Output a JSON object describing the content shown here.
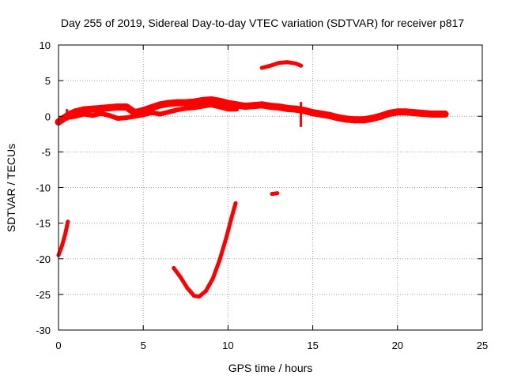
{
  "chart_data": {
    "type": "scatter",
    "title": "Day 255 of 2019, Sidereal Day-to-day VTEC variation (SDTVAR) for receiver p817",
    "xlabel": "GPS time / hours",
    "ylabel": "SDTVAR / TECUs",
    "xlim": [
      0,
      25
    ],
    "ylim": [
      -30,
      10
    ],
    "grid": true,
    "x_ticks": [
      "0",
      "5",
      "10",
      "15",
      "20",
      "25"
    ],
    "y_ticks": [
      "10",
      "5",
      "0",
      "-5",
      "-10",
      "-15",
      "-20",
      "-25",
      "-30"
    ],
    "series": [
      {
        "name": "main-band",
        "color": "#ff0000",
        "width": 9,
        "points": [
          [
            0,
            -0.8
          ],
          [
            0.3,
            -0.3
          ],
          [
            0.6,
            0.2
          ],
          [
            1,
            0.6
          ],
          [
            1.5,
            0.9
          ],
          [
            2,
            1.0
          ],
          [
            2.5,
            1.1
          ],
          [
            3,
            1.2
          ],
          [
            3.5,
            1.3
          ],
          [
            4,
            1.3
          ],
          [
            4.5,
            0.5
          ],
          [
            5,
            0.8
          ],
          [
            5.5,
            1.2
          ],
          [
            6,
            1.6
          ],
          [
            6.5,
            1.8
          ],
          [
            7,
            1.9
          ],
          [
            7.5,
            1.9
          ],
          [
            8,
            2.0
          ],
          [
            8.5,
            2.2
          ],
          [
            9,
            2.3
          ],
          [
            9.5,
            2.1
          ],
          [
            10,
            1.8
          ],
          [
            10.5,
            1.6
          ],
          [
            11,
            1.4
          ],
          [
            11.5,
            1.5
          ],
          [
            12,
            1.6
          ],
          [
            12.5,
            1.4
          ],
          [
            13,
            1.3
          ],
          [
            13.5,
            1.1
          ],
          [
            14,
            1.0
          ],
          [
            14.5,
            0.8
          ],
          [
            15,
            0.5
          ],
          [
            15.5,
            0.3
          ],
          [
            16,
            0.1
          ],
          [
            16.5,
            -0.2
          ],
          [
            17,
            -0.4
          ],
          [
            17.5,
            -0.5
          ],
          [
            18,
            -0.5
          ],
          [
            18.5,
            -0.3
          ],
          [
            19,
            0.0
          ],
          [
            19.5,
            0.4
          ],
          [
            20,
            0.6
          ],
          [
            20.5,
            0.6
          ],
          [
            21,
            0.5
          ],
          [
            21.5,
            0.4
          ],
          [
            22,
            0.3
          ],
          [
            22.5,
            0.3
          ],
          [
            22.8,
            0.3
          ]
        ]
      },
      {
        "name": "lower-band",
        "color": "#ff0000",
        "width": 6,
        "points": [
          [
            0.5,
            -0.2
          ],
          [
            1,
            0.0
          ],
          [
            1.5,
            0.3
          ],
          [
            2,
            0.1
          ],
          [
            2.5,
            0.4
          ],
          [
            3,
            0.1
          ],
          [
            3.5,
            -0.3
          ],
          [
            4,
            -0.2
          ],
          [
            4.5,
            0.0
          ],
          [
            5,
            0.2
          ],
          [
            5.5,
            0.5
          ],
          [
            6,
            0.3
          ],
          [
            6.5,
            0.6
          ],
          [
            7,
            0.9
          ],
          [
            7.5,
            1.1
          ],
          [
            8,
            1.2
          ],
          [
            8.5,
            1.4
          ],
          [
            9,
            1.6
          ],
          [
            9.5,
            1.3
          ],
          [
            10,
            1.0
          ],
          [
            10.5,
            1.0
          ]
        ]
      },
      {
        "name": "upper-arc",
        "color": "#ff0000",
        "width": 5,
        "points": [
          [
            12,
            6.8
          ],
          [
            12.5,
            7.1
          ],
          [
            13,
            7.5
          ],
          [
            13.5,
            7.6
          ],
          [
            14,
            7.4
          ],
          [
            14.3,
            7.1
          ]
        ]
      },
      {
        "name": "small-segment",
        "color": "#ff0000",
        "width": 5,
        "points": [
          [
            12.6,
            -10.9
          ],
          [
            12.9,
            -10.8
          ]
        ]
      },
      {
        "name": "start-segment",
        "color": "#ff0000",
        "width": 5,
        "points": [
          [
            0,
            -19.5
          ],
          [
            0.2,
            -18.2
          ],
          [
            0.4,
            -16.5
          ],
          [
            0.55,
            -14.8
          ]
        ]
      },
      {
        "name": "deep-dip",
        "color": "#ff0000",
        "width": 5,
        "points": [
          [
            6.8,
            -21.3
          ],
          [
            7.2,
            -22.6
          ],
          [
            7.6,
            -24.1
          ],
          [
            8.0,
            -25.2
          ],
          [
            8.3,
            -25.3
          ],
          [
            8.7,
            -24.5
          ],
          [
            9.1,
            -22.8
          ],
          [
            9.5,
            -20.2
          ],
          [
            9.9,
            -17.0
          ],
          [
            10.2,
            -14.3
          ],
          [
            10.45,
            -12.2
          ]
        ]
      }
    ],
    "spikes": [
      {
        "x": 14.3,
        "y_from": 2.0,
        "y_to": -1.5
      },
      {
        "x": 0.5,
        "y_from": 1.0,
        "y_to": -0.6
      }
    ]
  }
}
